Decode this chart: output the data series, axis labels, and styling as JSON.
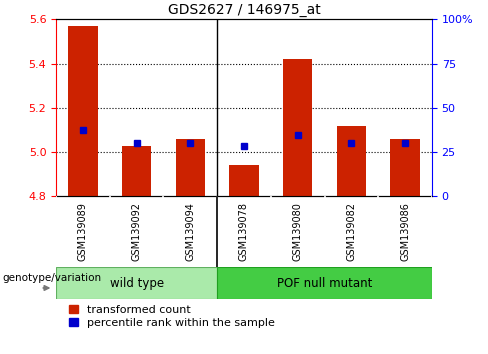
{
  "title": "GDS2627 / 146975_at",
  "samples": [
    "GSM139089",
    "GSM139092",
    "GSM139094",
    "GSM139078",
    "GSM139080",
    "GSM139082",
    "GSM139086"
  ],
  "transformed_counts": [
    5.57,
    5.03,
    5.06,
    4.94,
    5.42,
    5.12,
    5.06
  ],
  "percentile_ranks_y": [
    5.1,
    5.04,
    5.04,
    5.03,
    5.08,
    5.04,
    5.04
  ],
  "groups": [
    "wild type",
    "wild type",
    "wild type",
    "POF null mutant",
    "POF null mutant",
    "POF null mutant",
    "POF null mutant"
  ],
  "wt_color": "#aaeaaa",
  "pof_color": "#44cc44",
  "bar_color": "#cc2200",
  "dot_color": "#0000cc",
  "y_min": 4.8,
  "y_max": 5.6,
  "y_ticks": [
    4.8,
    5.0,
    5.2,
    5.4,
    5.6
  ],
  "y2_ticks": [
    0,
    25,
    50,
    75,
    100
  ],
  "y2_labels": [
    "0",
    "25",
    "50",
    "75",
    "100%"
  ],
  "grid_lines": [
    5.0,
    5.2,
    5.4
  ],
  "separator_after_idx": 2,
  "bar_width": 0.55,
  "legend_red_label": "transformed count",
  "legend_blue_label": "percentile rank within the sample",
  "bottom_label": "genotype/variation",
  "label_box_color": "#cccccc",
  "fig_bg": "#ffffff"
}
